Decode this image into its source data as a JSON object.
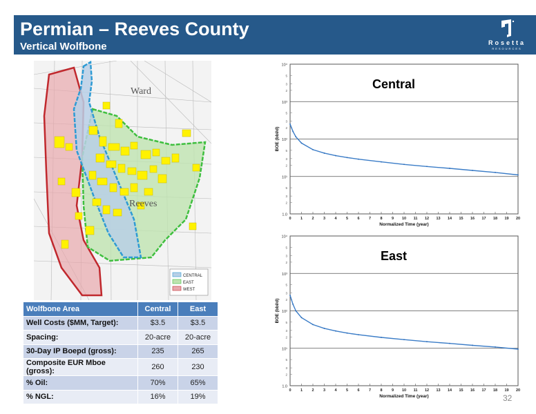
{
  "header": {
    "title": "Permian – Reeves County",
    "subtitle": "Vertical Wolfbone",
    "logo_name": "Rosetta",
    "logo_sub": "RESOURCES"
  },
  "map": {
    "labels": [
      "Ward",
      "Reeves"
    ],
    "legend": [
      "CENTRAL",
      "EAST",
      "WEST"
    ],
    "colors": {
      "central": "#2e9bd4",
      "east": "#3fbf3f",
      "west": "#c0282d",
      "leases": "#fff200"
    }
  },
  "table": {
    "headers": [
      "Wolfbone Area",
      "Central",
      "East"
    ],
    "rows": [
      {
        "label": "Well Costs ($MM, Target):",
        "central": "$3.5",
        "east": "$3.5"
      },
      {
        "label": "Spacing:",
        "central": "20-acre",
        "east": "20-acre"
      },
      {
        "label": "30-Day IP Boepd (gross):",
        "central": "235",
        "east": "265"
      },
      {
        "label": "Composite EUR Mboe (gross):",
        "central": "260",
        "east": "230"
      },
      {
        "label": "% Oil:",
        "central": "70%",
        "east": "65%"
      },
      {
        "label": "% NGL:",
        "central": "16%",
        "east": "19%"
      }
    ]
  },
  "chart_data": [
    {
      "type": "line",
      "title": "Central",
      "xlabel": "Normalized Time (year)",
      "ylabel": "BOE (bbl/d)",
      "xlim": [
        0,
        20
      ],
      "ylim": [
        1,
        10000
      ],
      "yscale": "log",
      "x_ticks": [
        0,
        1,
        2,
        3,
        4,
        5,
        6,
        7,
        8,
        9,
        10,
        11,
        12,
        13,
        14,
        15,
        16,
        17,
        18,
        19,
        20
      ],
      "y_ticks": [
        "1.0",
        "10¹",
        "10²",
        "10³",
        "10⁴"
      ],
      "grid": "horizontal",
      "series": [
        {
          "x": [
            0,
            0.25,
            0.5,
            1,
            2,
            3,
            4,
            5,
            6,
            8,
            10,
            12,
            14,
            16,
            18,
            20
          ],
          "y": [
            250,
            160,
            115,
            78,
            52,
            42,
            36,
            32,
            29,
            24.5,
            21,
            18.5,
            16.5,
            14.5,
            12.8,
            11
          ]
        }
      ]
    },
    {
      "type": "line",
      "title": "East",
      "xlabel": "Normalized Time (year)",
      "ylabel": "BOE (bbl/d)",
      "xlim": [
        0,
        20
      ],
      "ylim": [
        1,
        10000
      ],
      "yscale": "log",
      "x_ticks": [
        0,
        1,
        2,
        3,
        4,
        5,
        6,
        7,
        8,
        9,
        10,
        11,
        12,
        13,
        14,
        15,
        16,
        17,
        18,
        19,
        20
      ],
      "y_ticks": [
        "1.0",
        "10¹",
        "10²",
        "10³",
        "10⁴"
      ],
      "grid": "horizontal",
      "series": [
        {
          "x": [
            0,
            0.25,
            0.5,
            1,
            2,
            3,
            4,
            5,
            6,
            8,
            10,
            12,
            14,
            16,
            18,
            20
          ],
          "y": [
            260,
            150,
            100,
            66,
            43,
            34,
            29,
            25.5,
            23,
            19.5,
            17,
            15,
            13.5,
            12,
            10.8,
            9.5
          ]
        }
      ]
    }
  ],
  "page_number": "32"
}
